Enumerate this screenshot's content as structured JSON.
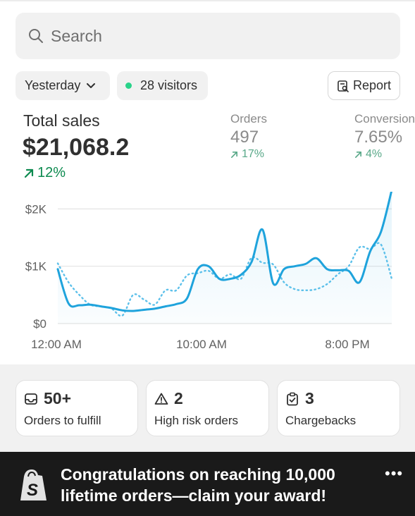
{
  "search": {
    "placeholder": "Search"
  },
  "filters": {
    "date_label": "Yesterday",
    "visitors_label": "28 visitors",
    "report_label": "Report"
  },
  "summary": {
    "total_sales_label": "Total sales",
    "total_sales_value": "$21,068.2",
    "total_sales_change": "12%",
    "metrics": [
      {
        "label": "Orders",
        "value": "497",
        "change": "17%"
      },
      {
        "label": "Conversion",
        "value": "7.65%",
        "change": "4%"
      }
    ]
  },
  "colors": {
    "accent_positive": "#0c8a4f",
    "series_line": "#1fa3dc",
    "online_dot": "#29d38a"
  },
  "chart_data": {
    "type": "line",
    "x_ticks": [
      "12:00 AM",
      "10:00 AM",
      "8:00 PM"
    ],
    "y_ticks": [
      "$0",
      "$1K",
      "$2K"
    ],
    "ylim": [
      0,
      2300
    ],
    "series": [
      {
        "style": "solid",
        "values": [
          950,
          350,
          320,
          330,
          300,
          270,
          230,
          220,
          240,
          260,
          300,
          340,
          440,
          950,
          1000,
          780,
          780,
          850,
          1080,
          1640,
          700,
          950,
          1000,
          1040,
          1140,
          950,
          930,
          920,
          720,
          1260,
          1600,
          2330
        ]
      },
      {
        "style": "dotted",
        "values": [
          1050,
          720,
          500,
          330,
          300,
          260,
          140,
          500,
          420,
          330,
          580,
          580,
          840,
          880,
          920,
          780,
          860,
          780,
          1150,
          1060,
          1030,
          720,
          600,
          580,
          600,
          690,
          860,
          1000,
          1330,
          1300,
          1380,
          780
        ]
      }
    ]
  },
  "cards": [
    {
      "icon": "inbox-icon",
      "value": "50+",
      "label": "Orders to fulfill"
    },
    {
      "icon": "alert-triangle-icon",
      "value": "2",
      "label": "High risk orders"
    },
    {
      "icon": "clipboard-check-icon",
      "value": "3",
      "label": "Chargebacks"
    }
  ],
  "banner": {
    "message": "Congratulations on reaching 10,000 lifetime orders—claim your award!",
    "more": "•••"
  }
}
